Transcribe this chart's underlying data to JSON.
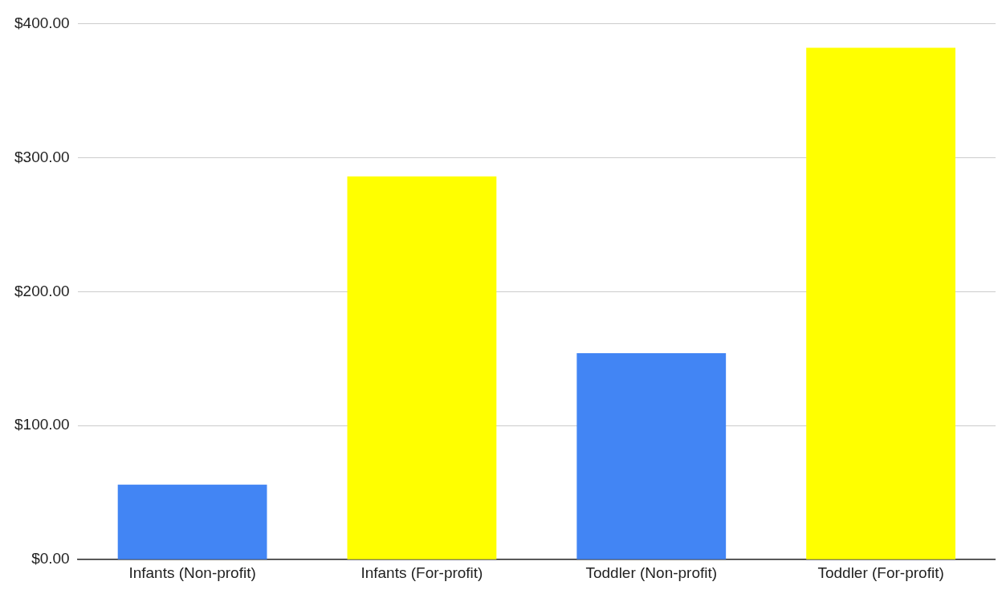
{
  "chart_data": {
    "type": "bar",
    "categories": [
      "Infants (Non-profit)",
      "Infants (For-profit)",
      "Toddler (Non-profit)",
      "Toddler (For-profit)"
    ],
    "values": [
      56,
      286,
      154,
      382
    ],
    "colors": [
      "#4285f4",
      "#ffff00",
      "#4285f4",
      "#ffff00"
    ],
    "ylim": [
      0,
      400
    ],
    "yticks": [
      {
        "value": 0,
        "label": "$0.00"
      },
      {
        "value": 100,
        "label": "$100.00"
      },
      {
        "value": 200,
        "label": "$200.00"
      },
      {
        "value": 300,
        "label": "$300.00"
      },
      {
        "value": 400,
        "label": "$400.00"
      }
    ],
    "grid": "y",
    "legend": false
  }
}
